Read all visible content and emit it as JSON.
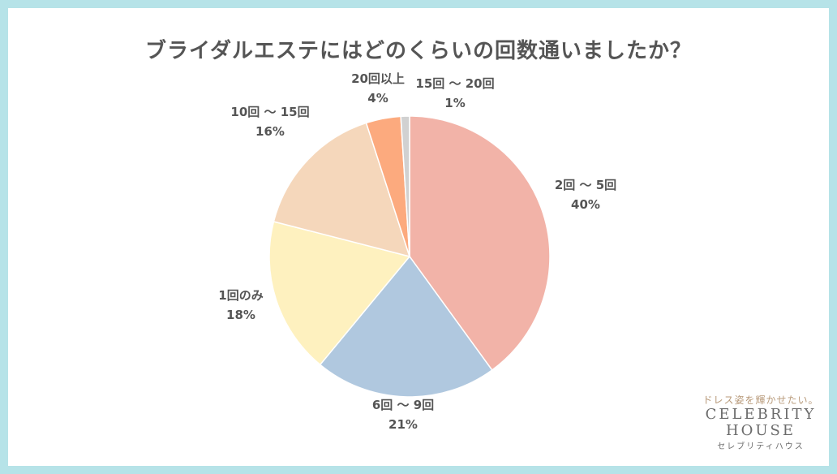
{
  "chart_data": {
    "type": "pie",
    "title": "ブライダルエステにはどのくらいの回数通いましたか？",
    "slices": [
      {
        "label": "2回 ～ 5回",
        "value": 40,
        "pct_text": "40%",
        "color": "#f2b3a8"
      },
      {
        "label": "6回 ～ 9回",
        "value": 21,
        "pct_text": "21%",
        "color": "#b0c8df"
      },
      {
        "label": "1回のみ",
        "value": 18,
        "pct_text": "18%",
        "color": "#fef1bf"
      },
      {
        "label": "10回 ～ 15回",
        "value": 16,
        "pct_text": "16%",
        "color": "#f5d7bb"
      },
      {
        "label": "20回以上",
        "value": 4,
        "pct_text": "4%",
        "color": "#fcaa7e"
      },
      {
        "label": "15回 ～ 20回",
        "value": 1,
        "pct_text": "1%",
        "color": "#d1d1d1"
      }
    ],
    "start": "12 o'clock",
    "direction": "clockwise"
  },
  "brand": {
    "tagline": "ドレス姿を輝かせたい。",
    "name_line1": "CELEBRITY",
    "name_line2": "HOUSE",
    "kana": "セレブリティハウス"
  }
}
